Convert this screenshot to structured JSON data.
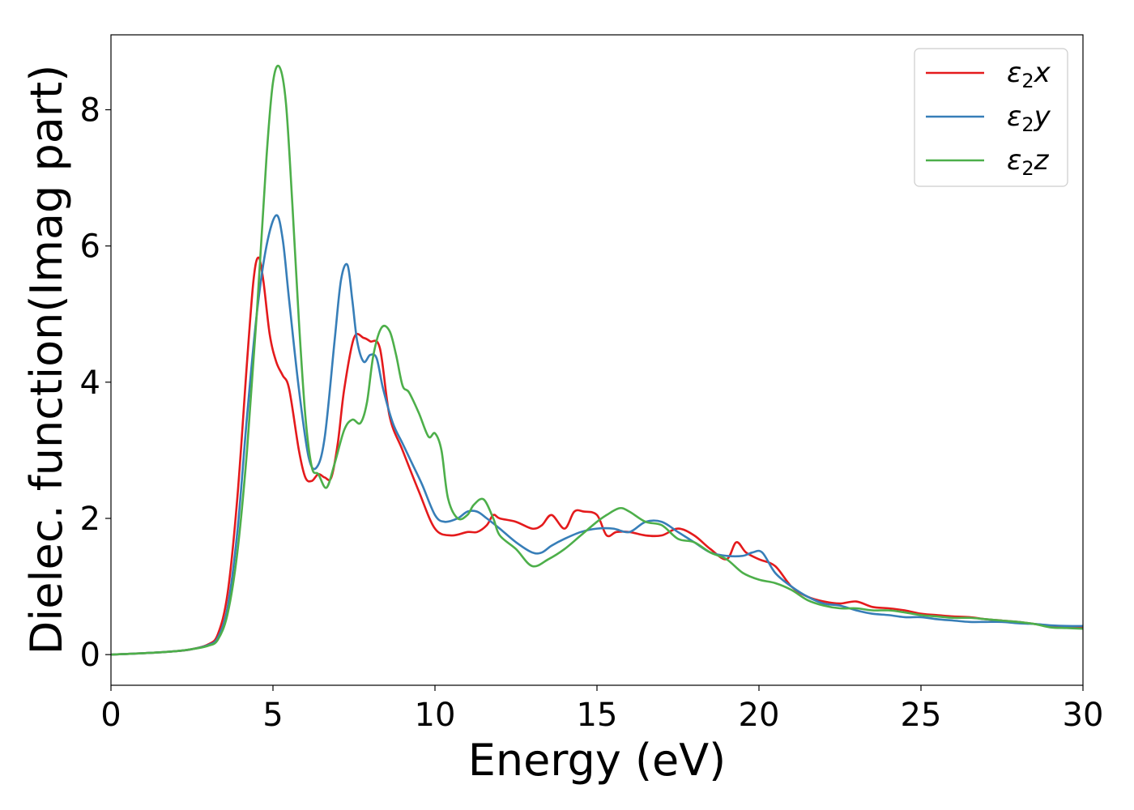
{
  "chart_data": {
    "type": "line",
    "xlabel": "Energy (eV)",
    "ylabel": "Dielec. function(Imag part)",
    "xlim": [
      0,
      30
    ],
    "ylim": [
      -0.45,
      9.1
    ],
    "xticks": [
      0,
      5,
      10,
      15,
      20,
      25,
      30
    ],
    "yticks": [
      0,
      2,
      4,
      6,
      8
    ],
    "grid": false,
    "legend_position": "top-right",
    "series": [
      {
        "name": "ε2x",
        "label_main": "ε",
        "label_sub": "2",
        "label_suffix": "x",
        "color": "#e41a1c",
        "x": [
          0,
          1,
          2,
          2.5,
          3,
          3.3,
          3.6,
          3.9,
          4.2,
          4.4,
          4.55,
          4.7,
          4.9,
          5.1,
          5.3,
          5.5,
          5.8,
          6.0,
          6.2,
          6.4,
          6.6,
          6.8,
          7.0,
          7.2,
          7.5,
          7.8,
          8.0,
          8.3,
          8.6,
          9.0,
          9.5,
          10.0,
          10.5,
          11.0,
          11.3,
          11.6,
          11.8,
          12.0,
          12.5,
          13.0,
          13.3,
          13.6,
          14.0,
          14.3,
          14.6,
          15.0,
          15.3,
          15.6,
          16.0,
          16.5,
          17.0,
          17.5,
          18.0,
          18.5,
          19.0,
          19.3,
          19.6,
          20.0,
          20.5,
          21.0,
          21.5,
          22.0,
          22.5,
          23.0,
          23.5,
          24.0,
          24.5,
          25.0,
          25.5,
          26.0,
          26.5,
          27.0,
          27.5,
          28.0,
          28.5,
          29.0,
          29.5,
          30.0
        ],
        "values": [
          0.0,
          0.02,
          0.05,
          0.08,
          0.15,
          0.3,
          0.9,
          2.3,
          4.3,
          5.5,
          5.83,
          5.5,
          4.7,
          4.3,
          4.1,
          3.9,
          3.0,
          2.6,
          2.55,
          2.65,
          2.6,
          2.6,
          3.1,
          3.9,
          4.65,
          4.65,
          4.6,
          4.5,
          3.5,
          3.0,
          2.4,
          1.85,
          1.75,
          1.8,
          1.8,
          1.9,
          2.05,
          2.0,
          1.95,
          1.85,
          1.9,
          2.05,
          1.85,
          2.1,
          2.1,
          2.05,
          1.75,
          1.8,
          1.8,
          1.75,
          1.75,
          1.85,
          1.75,
          1.55,
          1.4,
          1.65,
          1.5,
          1.4,
          1.3,
          1.0,
          0.85,
          0.78,
          0.75,
          0.78,
          0.7,
          0.68,
          0.65,
          0.6,
          0.58,
          0.56,
          0.55,
          0.52,
          0.5,
          0.48,
          0.45,
          0.42,
          0.4,
          0.39
        ]
      },
      {
        "name": "ε2y",
        "label_main": "ε",
        "label_sub": "2",
        "label_suffix": "y",
        "color": "#377eb8",
        "x": [
          0,
          1,
          2,
          2.5,
          3,
          3.3,
          3.6,
          3.9,
          4.2,
          4.5,
          4.8,
          5.1,
          5.3,
          5.5,
          5.8,
          6.1,
          6.35,
          6.6,
          6.9,
          7.1,
          7.3,
          7.45,
          7.6,
          7.8,
          8.0,
          8.2,
          8.4,
          8.7,
          9.0,
          9.3,
          9.6,
          10.0,
          10.3,
          10.7,
          11.0,
          11.3,
          11.6,
          12.0,
          12.5,
          13.0,
          13.3,
          13.6,
          14.0,
          14.5,
          15.0,
          15.5,
          16.0,
          16.5,
          17.0,
          17.5,
          18.0,
          18.5,
          19.0,
          19.5,
          19.8,
          20.1,
          20.5,
          21.0,
          21.5,
          22.0,
          22.5,
          23.0,
          23.5,
          24.0,
          24.5,
          25.0,
          25.5,
          26.0,
          26.5,
          27.0,
          27.5,
          28.0,
          28.5,
          29.0,
          29.5,
          30.0
        ],
        "values": [
          0.0,
          0.02,
          0.05,
          0.08,
          0.14,
          0.25,
          0.7,
          1.8,
          3.5,
          5.0,
          6.0,
          6.45,
          6.1,
          5.2,
          3.9,
          2.9,
          2.75,
          3.2,
          4.6,
          5.5,
          5.72,
          5.2,
          4.6,
          4.3,
          4.4,
          4.35,
          3.9,
          3.4,
          3.1,
          2.8,
          2.5,
          2.05,
          1.95,
          2.0,
          2.1,
          2.1,
          2.0,
          1.85,
          1.65,
          1.5,
          1.5,
          1.6,
          1.7,
          1.8,
          1.85,
          1.85,
          1.8,
          1.95,
          1.95,
          1.8,
          1.65,
          1.5,
          1.45,
          1.45,
          1.5,
          1.5,
          1.2,
          1.0,
          0.85,
          0.75,
          0.72,
          0.65,
          0.6,
          0.58,
          0.55,
          0.55,
          0.52,
          0.5,
          0.48,
          0.48,
          0.48,
          0.46,
          0.45,
          0.43,
          0.42,
          0.42
        ]
      },
      {
        "name": "ε2z",
        "label_main": "ε",
        "label_sub": "2",
        "label_suffix": "z",
        "color": "#4daf4a",
        "x": [
          0,
          1,
          2,
          2.5,
          3,
          3.3,
          3.6,
          3.9,
          4.2,
          4.5,
          4.8,
          5.0,
          5.2,
          5.4,
          5.6,
          5.8,
          6.0,
          6.2,
          6.4,
          6.65,
          6.9,
          7.2,
          7.45,
          7.7,
          7.9,
          8.1,
          8.35,
          8.6,
          8.8,
          9.0,
          9.2,
          9.5,
          9.8,
          10.0,
          10.2,
          10.4,
          10.7,
          11.0,
          11.2,
          11.5,
          11.8,
          12.0,
          12.5,
          13.0,
          13.5,
          14.0,
          14.5,
          15.0,
          15.3,
          15.7,
          16.0,
          16.5,
          17.0,
          17.5,
          18.0,
          18.5,
          19.0,
          19.5,
          20.0,
          20.5,
          21.0,
          21.5,
          22.0,
          22.5,
          23.0,
          23.5,
          24.0,
          24.5,
          25.0,
          25.5,
          26.0,
          26.5,
          27.0,
          27.5,
          28.0,
          28.5,
          29.0,
          29.5,
          30.0
        ],
        "values": [
          0.0,
          0.02,
          0.05,
          0.08,
          0.13,
          0.22,
          0.6,
          1.5,
          3.0,
          5.0,
          7.3,
          8.4,
          8.63,
          8.1,
          6.6,
          4.9,
          3.5,
          2.75,
          2.65,
          2.45,
          2.8,
          3.3,
          3.45,
          3.4,
          3.7,
          4.4,
          4.8,
          4.75,
          4.4,
          3.95,
          3.85,
          3.55,
          3.2,
          3.25,
          3.0,
          2.3,
          2.0,
          2.05,
          2.2,
          2.28,
          2.0,
          1.75,
          1.55,
          1.3,
          1.4,
          1.55,
          1.75,
          1.95,
          2.05,
          2.15,
          2.1,
          1.95,
          1.9,
          1.7,
          1.65,
          1.5,
          1.4,
          1.2,
          1.1,
          1.05,
          0.95,
          0.8,
          0.72,
          0.68,
          0.68,
          0.65,
          0.65,
          0.62,
          0.58,
          0.56,
          0.54,
          0.54,
          0.52,
          0.5,
          0.48,
          0.45,
          0.4,
          0.39,
          0.38
        ]
      }
    ]
  }
}
